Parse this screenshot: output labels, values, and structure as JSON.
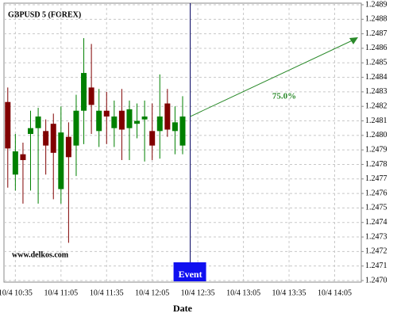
{
  "chart_data": {
    "type": "candlestick",
    "title": "GBPUSD 5 (FOREX)",
    "xlabel": "Date",
    "watermark": "www.delkos.com",
    "event_label": "Event",
    "annotation": "75.0%",
    "categories": [
      null,
      "10/4 10:35",
      null,
      null,
      null,
      null,
      null,
      "10/4 11:05",
      null,
      null,
      null,
      null,
      null,
      "10/4 11:35",
      null,
      null,
      null,
      null,
      null,
      "10/4 12:05",
      null,
      null,
      null,
      null,
      null,
      "10/4 12:35",
      null,
      null,
      null,
      null,
      null,
      "10/4 13:05",
      null,
      null,
      null,
      null,
      null,
      "10/4 13:35",
      null,
      null,
      null,
      null,
      null,
      "10/4 14:05",
      null,
      null,
      null
    ],
    "open": [
      1.24823,
      1.24773,
      1.24787,
      1.24801,
      1.24805,
      1.24803,
      1.24808,
      1.24763,
      1.24799,
      1.24793,
      1.24817,
      1.24833,
      1.24803,
      1.24817,
      1.24805,
      1.24817,
      1.24805,
      1.24808,
      1.24811,
      1.24803,
      1.24803,
      1.24822,
      1.24803,
      1.24793,
      null,
      null,
      null,
      null,
      null,
      null,
      null,
      null,
      null,
      null,
      null,
      null,
      null,
      null,
      null,
      null,
      null,
      null,
      null,
      null,
      null,
      null,
      null
    ],
    "high": [
      1.24833,
      1.24801,
      1.24795,
      1.24817,
      1.24819,
      1.24811,
      1.24815,
      1.2482,
      1.24809,
      1.24828,
      1.24867,
      1.24863,
      1.24832,
      1.2483,
      1.24824,
      1.24832,
      1.24824,
      1.24822,
      1.24824,
      1.24822,
      1.24842,
      1.24832,
      1.2482,
      1.24827,
      null,
      null,
      null,
      null,
      null,
      null,
      null,
      null,
      null,
      null,
      null,
      null,
      null,
      null,
      null,
      null,
      null,
      null,
      null,
      null,
      null,
      null,
      null
    ],
    "low": [
      1.24764,
      1.24762,
      1.24753,
      1.24762,
      1.24753,
      1.24773,
      1.24756,
      1.24753,
      1.24726,
      1.24772,
      1.24794,
      1.24801,
      1.24792,
      1.24794,
      1.24792,
      1.24783,
      1.24783,
      1.24798,
      1.24782,
      1.24783,
      1.24784,
      1.24799,
      1.24787,
      1.24787,
      null,
      null,
      null,
      null,
      null,
      null,
      null,
      null,
      null,
      null,
      null,
      null,
      null,
      null,
      null,
      null,
      null,
      null,
      null,
      null,
      null,
      null,
      null
    ],
    "close": [
      1.24791,
      1.24789,
      1.24783,
      1.24805,
      1.24813,
      1.24793,
      1.24788,
      1.24802,
      1.24785,
      1.24817,
      1.24843,
      1.24821,
      1.24817,
      1.24813,
      1.24813,
      1.24804,
      1.24818,
      1.2481,
      1.24813,
      1.24793,
      1.24813,
      1.24804,
      1.24809,
      1.24813,
      null,
      null,
      null,
      null,
      null,
      null,
      null,
      null,
      null,
      null,
      null,
      null,
      null,
      null,
      null,
      null,
      null,
      null,
      null,
      null,
      null,
      null,
      null
    ],
    "up_color": "#008000",
    "down_color": "#800000",
    "event_color": "#1010f0",
    "annotation_color": "#2a8a2a",
    "ylim": [
      1.247,
      1.2489
    ],
    "yticks": [
      {
        "value": 1.247,
        "label": "1.2470"
      },
      1.2471,
      1.2472,
      1.2473,
      1.2474,
      1.2475,
      1.2476,
      1.2477,
      1.2478,
      1.2479,
      {
        "value": 1.248,
        "label": "1.2480"
      },
      1.2481,
      1.2482,
      1.2483,
      1.2484,
      1.2485,
      1.2486,
      1.2487,
      1.2488,
      1.2489
    ],
    "grid": true
  }
}
